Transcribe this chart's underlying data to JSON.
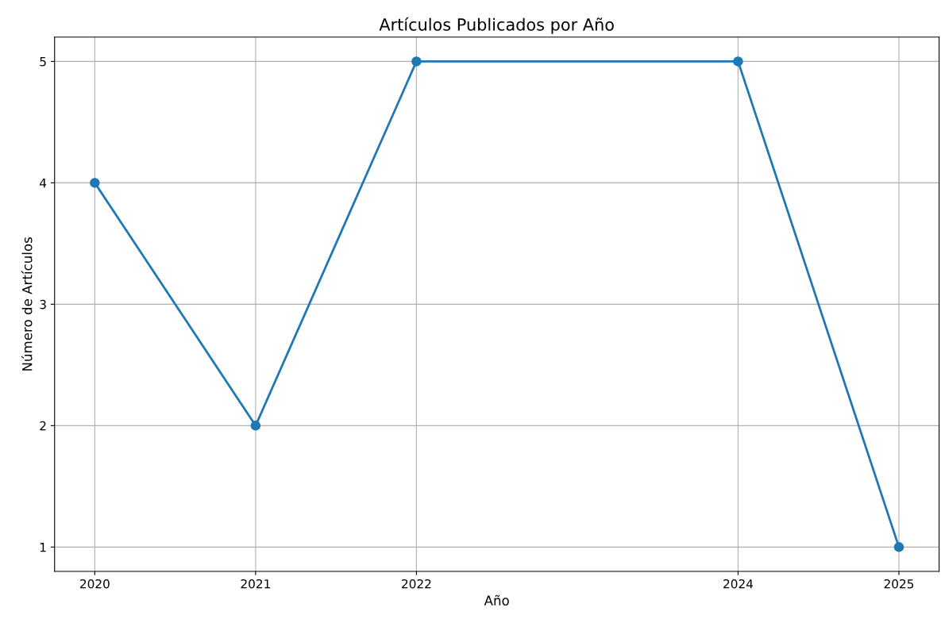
{
  "chart_data": {
    "type": "line",
    "title": "Artículos Publicados por Año",
    "xlabel": "Año",
    "ylabel": "Número de Artículos",
    "x": [
      2020,
      2021,
      2022,
      2024,
      2025
    ],
    "series": [
      {
        "color": "#1f77b4",
        "values": [
          4,
          2,
          5,
          5,
          1
        ]
      }
    ],
    "xlim": [
      2019.75,
      2025.25
    ],
    "xticks": [
      2020,
      2021,
      2022,
      2024,
      2025
    ],
    "ylim": [
      0.8,
      5.2
    ],
    "yticks": [
      1,
      2,
      3,
      4,
      5
    ],
    "grid": true,
    "marker": "circle",
    "line_style": "solid"
  }
}
